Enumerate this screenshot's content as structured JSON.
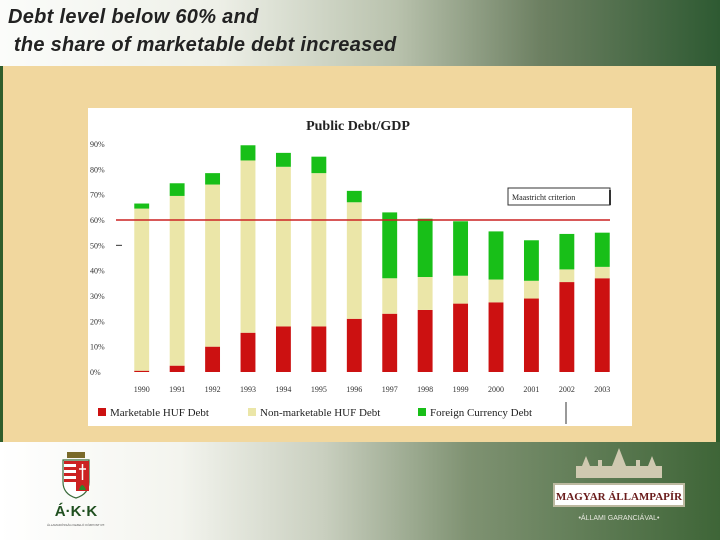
{
  "slide": {
    "title_line1": "Debt level below 60% and",
    "title_line2": " the share of marketable debt increased"
  },
  "logos": {
    "left_text": "Á·K·K",
    "left_subtext": "ÁLLAMADÓSSÁG KEZELŐ KÖZPONT RT.",
    "right_text": "MAGYAR ÁLLAMPAPÍR",
    "right_subtext": "•ÁLLAMI GARANCIÁVAL•"
  },
  "colors": {
    "marketable": "#cc1111",
    "non_marketable": "#ebe6a8",
    "foreign": "#18bf18",
    "maastricht_line": "#cc2222"
  },
  "chart_data": {
    "type": "bar",
    "stacked": true,
    "title": "Public Debt/GDP",
    "categories": [
      "1990",
      "1991",
      "1992",
      "1993",
      "1994",
      "1995",
      "1996",
      "1997",
      "1998",
      "1999",
      "2000",
      "2001",
      "2002",
      "2003"
    ],
    "series": [
      {
        "name": "Marketable HUF Debt",
        "values": [
          0.5,
          2.5,
          10,
          15.5,
          18,
          18,
          21,
          23,
          24.5,
          27,
          27.5,
          29,
          35.5,
          37
        ]
      },
      {
        "name": "Non-marketable HUF Debt",
        "values": [
          64,
          67,
          64,
          68,
          63,
          60.5,
          46,
          14,
          13,
          11,
          9,
          7,
          5,
          4.5
        ]
      },
      {
        "name": "Foreign Currency Debt",
        "values": [
          2,
          5,
          4.5,
          6,
          5.5,
          6.5,
          4.5,
          26,
          23,
          21.5,
          19,
          16,
          14,
          13.5
        ]
      }
    ],
    "ylim": [
      0,
      90
    ],
    "yticks": [
      "0%",
      "10%",
      "20%",
      "30%",
      "40%",
      "50%",
      "60%",
      "70%",
      "80%",
      "90%"
    ],
    "reference_line": {
      "label": "Maastricht criterion",
      "value": 60
    },
    "legend_position": "bottom"
  }
}
